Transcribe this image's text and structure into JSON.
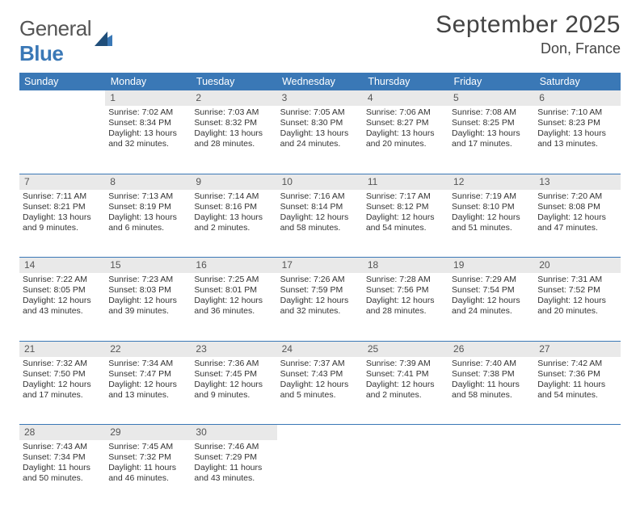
{
  "logo": {
    "word1": "General",
    "word2": "Blue"
  },
  "title": "September 2025",
  "location": "Don, France",
  "day_headers": [
    "Sunday",
    "Monday",
    "Tuesday",
    "Wednesday",
    "Thursday",
    "Friday",
    "Saturday"
  ],
  "colors": {
    "header_bg": "#3a78b6",
    "daynum_bg": "#e9e9e9",
    "rule": "#3a78b6"
  },
  "weeks": [
    [
      null,
      {
        "n": "1",
        "sunrise": "Sunrise: 7:02 AM",
        "sunset": "Sunset: 8:34 PM",
        "day1": "Daylight: 13 hours",
        "day2": "and 32 minutes."
      },
      {
        "n": "2",
        "sunrise": "Sunrise: 7:03 AM",
        "sunset": "Sunset: 8:32 PM",
        "day1": "Daylight: 13 hours",
        "day2": "and 28 minutes."
      },
      {
        "n": "3",
        "sunrise": "Sunrise: 7:05 AM",
        "sunset": "Sunset: 8:30 PM",
        "day1": "Daylight: 13 hours",
        "day2": "and 24 minutes."
      },
      {
        "n": "4",
        "sunrise": "Sunrise: 7:06 AM",
        "sunset": "Sunset: 8:27 PM",
        "day1": "Daylight: 13 hours",
        "day2": "and 20 minutes."
      },
      {
        "n": "5",
        "sunrise": "Sunrise: 7:08 AM",
        "sunset": "Sunset: 8:25 PM",
        "day1": "Daylight: 13 hours",
        "day2": "and 17 minutes."
      },
      {
        "n": "6",
        "sunrise": "Sunrise: 7:10 AM",
        "sunset": "Sunset: 8:23 PM",
        "day1": "Daylight: 13 hours",
        "day2": "and 13 minutes."
      }
    ],
    [
      {
        "n": "7",
        "sunrise": "Sunrise: 7:11 AM",
        "sunset": "Sunset: 8:21 PM",
        "day1": "Daylight: 13 hours",
        "day2": "and 9 minutes."
      },
      {
        "n": "8",
        "sunrise": "Sunrise: 7:13 AM",
        "sunset": "Sunset: 8:19 PM",
        "day1": "Daylight: 13 hours",
        "day2": "and 6 minutes."
      },
      {
        "n": "9",
        "sunrise": "Sunrise: 7:14 AM",
        "sunset": "Sunset: 8:16 PM",
        "day1": "Daylight: 13 hours",
        "day2": "and 2 minutes."
      },
      {
        "n": "10",
        "sunrise": "Sunrise: 7:16 AM",
        "sunset": "Sunset: 8:14 PM",
        "day1": "Daylight: 12 hours",
        "day2": "and 58 minutes."
      },
      {
        "n": "11",
        "sunrise": "Sunrise: 7:17 AM",
        "sunset": "Sunset: 8:12 PM",
        "day1": "Daylight: 12 hours",
        "day2": "and 54 minutes."
      },
      {
        "n": "12",
        "sunrise": "Sunrise: 7:19 AM",
        "sunset": "Sunset: 8:10 PM",
        "day1": "Daylight: 12 hours",
        "day2": "and 51 minutes."
      },
      {
        "n": "13",
        "sunrise": "Sunrise: 7:20 AM",
        "sunset": "Sunset: 8:08 PM",
        "day1": "Daylight: 12 hours",
        "day2": "and 47 minutes."
      }
    ],
    [
      {
        "n": "14",
        "sunrise": "Sunrise: 7:22 AM",
        "sunset": "Sunset: 8:05 PM",
        "day1": "Daylight: 12 hours",
        "day2": "and 43 minutes."
      },
      {
        "n": "15",
        "sunrise": "Sunrise: 7:23 AM",
        "sunset": "Sunset: 8:03 PM",
        "day1": "Daylight: 12 hours",
        "day2": "and 39 minutes."
      },
      {
        "n": "16",
        "sunrise": "Sunrise: 7:25 AM",
        "sunset": "Sunset: 8:01 PM",
        "day1": "Daylight: 12 hours",
        "day2": "and 36 minutes."
      },
      {
        "n": "17",
        "sunrise": "Sunrise: 7:26 AM",
        "sunset": "Sunset: 7:59 PM",
        "day1": "Daylight: 12 hours",
        "day2": "and 32 minutes."
      },
      {
        "n": "18",
        "sunrise": "Sunrise: 7:28 AM",
        "sunset": "Sunset: 7:56 PM",
        "day1": "Daylight: 12 hours",
        "day2": "and 28 minutes."
      },
      {
        "n": "19",
        "sunrise": "Sunrise: 7:29 AM",
        "sunset": "Sunset: 7:54 PM",
        "day1": "Daylight: 12 hours",
        "day2": "and 24 minutes."
      },
      {
        "n": "20",
        "sunrise": "Sunrise: 7:31 AM",
        "sunset": "Sunset: 7:52 PM",
        "day1": "Daylight: 12 hours",
        "day2": "and 20 minutes."
      }
    ],
    [
      {
        "n": "21",
        "sunrise": "Sunrise: 7:32 AM",
        "sunset": "Sunset: 7:50 PM",
        "day1": "Daylight: 12 hours",
        "day2": "and 17 minutes."
      },
      {
        "n": "22",
        "sunrise": "Sunrise: 7:34 AM",
        "sunset": "Sunset: 7:47 PM",
        "day1": "Daylight: 12 hours",
        "day2": "and 13 minutes."
      },
      {
        "n": "23",
        "sunrise": "Sunrise: 7:36 AM",
        "sunset": "Sunset: 7:45 PM",
        "day1": "Daylight: 12 hours",
        "day2": "and 9 minutes."
      },
      {
        "n": "24",
        "sunrise": "Sunrise: 7:37 AM",
        "sunset": "Sunset: 7:43 PM",
        "day1": "Daylight: 12 hours",
        "day2": "and 5 minutes."
      },
      {
        "n": "25",
        "sunrise": "Sunrise: 7:39 AM",
        "sunset": "Sunset: 7:41 PM",
        "day1": "Daylight: 12 hours",
        "day2": "and 2 minutes."
      },
      {
        "n": "26",
        "sunrise": "Sunrise: 7:40 AM",
        "sunset": "Sunset: 7:38 PM",
        "day1": "Daylight: 11 hours",
        "day2": "and 58 minutes."
      },
      {
        "n": "27",
        "sunrise": "Sunrise: 7:42 AM",
        "sunset": "Sunset: 7:36 PM",
        "day1": "Daylight: 11 hours",
        "day2": "and 54 minutes."
      }
    ],
    [
      {
        "n": "28",
        "sunrise": "Sunrise: 7:43 AM",
        "sunset": "Sunset: 7:34 PM",
        "day1": "Daylight: 11 hours",
        "day2": "and 50 minutes."
      },
      {
        "n": "29",
        "sunrise": "Sunrise: 7:45 AM",
        "sunset": "Sunset: 7:32 PM",
        "day1": "Daylight: 11 hours",
        "day2": "and 46 minutes."
      },
      {
        "n": "30",
        "sunrise": "Sunrise: 7:46 AM",
        "sunset": "Sunset: 7:29 PM",
        "day1": "Daylight: 11 hours",
        "day2": "and 43 minutes."
      },
      null,
      null,
      null,
      null
    ]
  ]
}
